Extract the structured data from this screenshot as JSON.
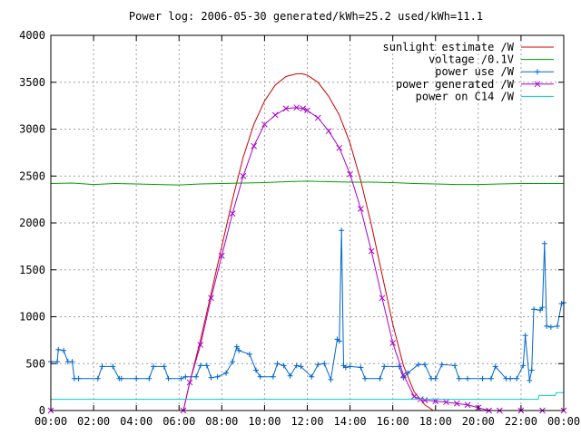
{
  "chart_data": {
    "type": "line",
    "title": "Power log: 2006-05-30 generated/kWh=25.2 used/kWh=11.1",
    "xlabel": "",
    "ylabel": "",
    "xlim": [
      0,
      24
    ],
    "ylim": [
      0,
      4000
    ],
    "grid": true,
    "legend_position": "top-right",
    "x_ticks": [
      "00:00",
      "02:00",
      "04:00",
      "06:00",
      "08:00",
      "10:00",
      "12:00",
      "14:00",
      "16:00",
      "18:00",
      "20:00",
      "22:00",
      "00:00"
    ],
    "y_ticks": [
      "0",
      "500",
      "1000",
      "1500",
      "2000",
      "2500",
      "3000",
      "3500",
      "4000"
    ],
    "x_tick_values": [
      0,
      2,
      4,
      6,
      8,
      10,
      12,
      14,
      16,
      18,
      20,
      22,
      24
    ],
    "y_tick_values": [
      0,
      500,
      1000,
      1500,
      2000,
      2500,
      3000,
      3500,
      4000
    ],
    "series": [
      {
        "name": "sunlight estimate /W",
        "color": "#cc0000",
        "style": "line",
        "x": [
          6.2,
          6.5,
          7,
          7.5,
          8,
          8.5,
          9,
          9.5,
          10,
          10.5,
          11,
          11.5,
          11.75,
          12,
          12.5,
          13,
          13.5,
          14,
          14.5,
          15,
          15.5,
          16,
          16.5,
          17,
          17.5,
          17.9
        ],
        "y": [
          0,
          300,
          750,
          1250,
          1750,
          2250,
          2700,
          3050,
          3300,
          3470,
          3560,
          3590,
          3590,
          3575,
          3500,
          3350,
          3150,
          2850,
          2450,
          1980,
          1450,
          920,
          480,
          200,
          60,
          0
        ]
      },
      {
        "name": "voltage /0.1V",
        "color": "#00a000",
        "style": "line",
        "x": [
          0,
          1,
          2,
          3,
          4,
          5,
          6,
          7,
          8,
          9,
          10,
          11,
          12,
          13,
          14,
          15,
          16,
          17,
          18,
          19,
          20,
          21,
          22,
          23,
          24
        ],
        "y": [
          2420,
          2425,
          2410,
          2420,
          2415,
          2410,
          2405,
          2415,
          2420,
          2425,
          2430,
          2440,
          2445,
          2440,
          2435,
          2435,
          2430,
          2420,
          2415,
          2410,
          2410,
          2415,
          2420,
          2420,
          2420
        ]
      },
      {
        "name": "power use /W",
        "color": "#0066cc",
        "style": "linepoints",
        "x": [
          0,
          0.3,
          0.35,
          0.6,
          0.8,
          1.0,
          1.1,
          1.3,
          2.2,
          2.4,
          2.9,
          3.2,
          3.3,
          4.0,
          4.6,
          4.8,
          5.3,
          5.5,
          6.1,
          6.3,
          6.8,
          7.0,
          7.3,
          7.5,
          7.8,
          8.2,
          8.5,
          8.7,
          8.8,
          9.3,
          9.6,
          9.8,
          10.4,
          10.6,
          10.9,
          11.2,
          11.5,
          11.7,
          12.2,
          12.5,
          12.8,
          13.1,
          13.4,
          13.5,
          13.6,
          13.7,
          13.8,
          14.0,
          14.5,
          14.7,
          15.4,
          15.6,
          16.3,
          16.5,
          16.7,
          17.2,
          17.5,
          17.8,
          18.0,
          18.3,
          18.9,
          19.1,
          19.5,
          20.2,
          20.6,
          20.8,
          21.3,
          21.5,
          21.8,
          22.1,
          22.2,
          22.4,
          22.5,
          22.6,
          22.9,
          23.0,
          23.1,
          23.2,
          23.4,
          23.7,
          23.9,
          24
        ],
        "y": [
          520,
          520,
          650,
          640,
          520,
          520,
          340,
          340,
          340,
          470,
          470,
          340,
          340,
          340,
          340,
          470,
          470,
          340,
          340,
          360,
          360,
          480,
          480,
          350,
          360,
          400,
          520,
          680,
          640,
          600,
          430,
          360,
          360,
          500,
          480,
          370,
          480,
          470,
          360,
          490,
          500,
          330,
          760,
          740,
          1920,
          480,
          460,
          470,
          460,
          340,
          340,
          470,
          470,
          350,
          400,
          490,
          490,
          340,
          340,
          490,
          480,
          340,
          340,
          340,
          340,
          470,
          340,
          340,
          340,
          480,
          800,
          320,
          430,
          1080,
          1070,
          1100,
          1780,
          900,
          890,
          900,
          1140,
          1150
        ]
      },
      {
        "name": "power generated /W",
        "color": "#aa00cc",
        "style": "linepoints",
        "x": [
          0,
          6.2,
          6.5,
          7,
          7.5,
          8,
          8.5,
          9,
          9.5,
          10,
          10.5,
          11,
          11.5,
          11.8,
          12,
          12.5,
          13,
          13.5,
          14,
          14.5,
          15,
          15.5,
          16,
          16.5,
          17,
          17.3,
          17.5,
          18,
          18.5,
          19,
          19.5,
          20,
          20.5,
          21,
          22,
          23,
          24
        ],
        "y": [
          0,
          0,
          300,
          700,
          1200,
          1650,
          2100,
          2500,
          2820,
          3050,
          3150,
          3220,
          3230,
          3220,
          3200,
          3120,
          2980,
          2800,
          2520,
          2150,
          1700,
          1200,
          720,
          380,
          150,
          120,
          110,
          100,
          90,
          75,
          60,
          30,
          0,
          0,
          0,
          0,
          0
        ]
      },
      {
        "name": "power on C14 /W",
        "color": "#00cccc",
        "style": "line",
        "x": [
          0,
          22.8,
          22.85,
          23.6,
          23.65,
          24
        ],
        "y": [
          120,
          120,
          160,
          160,
          190,
          190
        ]
      }
    ]
  }
}
